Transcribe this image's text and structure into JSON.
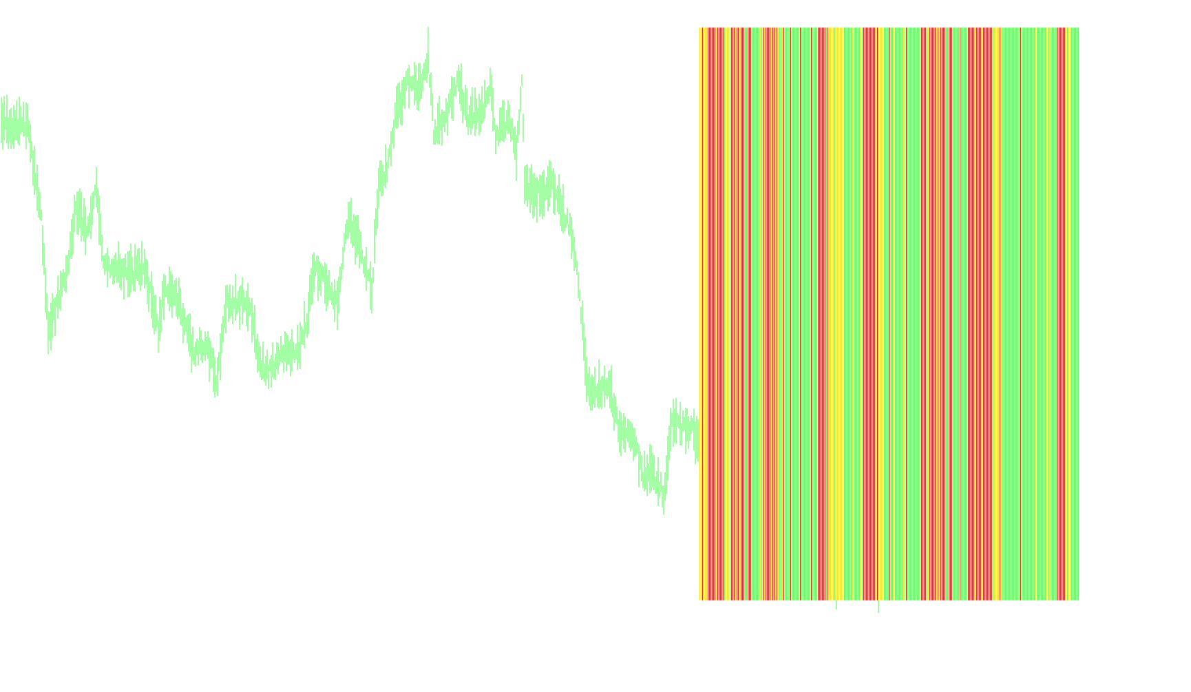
{
  "colors": {
    "background": "#ffffff",
    "price_bar": "#66ff66",
    "bull": "#66ff66",
    "bear": "#ff2a2a",
    "neutral": "#ffe033"
  },
  "chart_data": {
    "type": "bar",
    "grid": false,
    "legend": "none",
    "price_bars": {
      "color": "green",
      "anchors": [
        [
          0,
          180
        ],
        [
          20,
          185
        ],
        [
          40,
          180
        ],
        [
          60,
          320
        ],
        [
          70,
          480
        ],
        [
          80,
          450
        ],
        [
          100,
          380
        ],
        [
          110,
          300
        ],
        [
          125,
          330
        ],
        [
          140,
          280
        ],
        [
          150,
          380
        ],
        [
          170,
          390
        ],
        [
          190,
          400
        ],
        [
          210,
          390
        ],
        [
          230,
          480
        ],
        [
          240,
          410
        ],
        [
          260,
          440
        ],
        [
          280,
          510
        ],
        [
          300,
          500
        ],
        [
          315,
          550
        ],
        [
          330,
          440
        ],
        [
          350,
          440
        ],
        [
          365,
          450
        ],
        [
          375,
          520
        ],
        [
          390,
          540
        ],
        [
          410,
          510
        ],
        [
          430,
          520
        ],
        [
          445,
          470
        ],
        [
          455,
          390
        ],
        [
          470,
          400
        ],
        [
          490,
          440
        ],
        [
          505,
          320
        ],
        [
          520,
          350
        ],
        [
          540,
          420
        ],
        [
          550,
          270
        ],
        [
          560,
          250
        ],
        [
          575,
          170
        ],
        [
          590,
          120
        ],
        [
          610,
          130
        ],
        [
          622,
          80
        ],
        [
          630,
          190
        ],
        [
          645,
          180
        ],
        [
          665,
          120
        ],
        [
          680,
          170
        ],
        [
          700,
          160
        ],
        [
          712,
          120
        ],
        [
          720,
          200
        ],
        [
          740,
          170
        ],
        [
          750,
          220
        ],
        [
          758,
          120
        ],
        [
          762,
          270
        ],
        [
          780,
          285
        ],
        [
          800,
          260
        ],
        [
          815,
          300
        ],
        [
          830,
          340
        ],
        [
          842,
          420
        ],
        [
          852,
          560
        ],
        [
          868,
          570
        ],
        [
          885,
          560
        ],
        [
          900,
          630
        ],
        [
          920,
          640
        ],
        [
          935,
          690
        ],
        [
          950,
          690
        ],
        [
          965,
          720
        ],
        [
          975,
          610
        ],
        [
          990,
          620
        ],
        [
          1005,
          620
        ],
        [
          1012,
          640
        ]
      ],
      "step": 2,
      "seed": 7,
      "x_end": 1014,
      "last_close": 640
    },
    "indicator_stripes": {
      "x_range": [
        1016,
        1568
      ],
      "y_range": [
        40,
        872
      ],
      "width": 1.2,
      "segments": [
        [
          1016,
          1026,
          "neutral"
        ],
        [
          1026,
          1054,
          "bear"
        ],
        [
          1054,
          1070,
          "neutral"
        ],
        [
          1070,
          1092,
          "bear"
        ],
        [
          1092,
          1108,
          "bull"
        ],
        [
          1108,
          1140,
          "bear"
        ],
        [
          1140,
          1170,
          "bull"
        ],
        [
          1170,
          1192,
          "bull"
        ],
        [
          1192,
          1206,
          "bear"
        ],
        [
          1206,
          1226,
          "neutral"
        ],
        [
          1226,
          1254,
          "bull"
        ],
        [
          1254,
          1276,
          "bear"
        ],
        [
          1276,
          1286,
          "neutral"
        ],
        [
          1286,
          1338,
          "bull"
        ],
        [
          1338,
          1382,
          "bear"
        ],
        [
          1382,
          1406,
          "bull"
        ],
        [
          1406,
          1442,
          "bear"
        ],
        [
          1442,
          1456,
          "neutral"
        ],
        [
          1456,
          1536,
          "bull"
        ],
        [
          1536,
          1550,
          "bear"
        ],
        [
          1550,
          1568,
          "bull"
        ]
      ],
      "mix": {
        "bear": 0.8,
        "neutral": 0.7,
        "bull": 0.85
      },
      "seed": 13,
      "ticks": [
        [
          1215,
          872,
          885,
          "bull"
        ],
        [
          1276,
          872,
          890,
          "bull"
        ]
      ]
    }
  }
}
